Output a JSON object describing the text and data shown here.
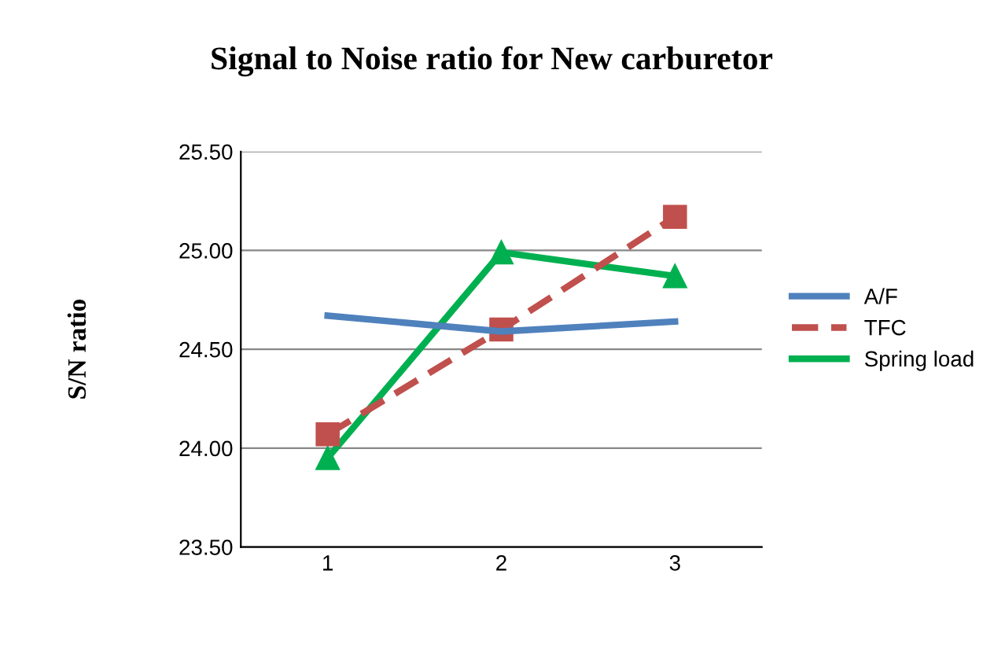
{
  "chart_data": {
    "type": "line",
    "title": "Signal to Noise ratio for New carburetor",
    "ylabel": "S/N ratio",
    "categories": [
      "1",
      "2",
      "3"
    ],
    "series": [
      {
        "name": "A/F",
        "color": "#4f81bd",
        "values": [
          24.67,
          24.59,
          24.64
        ],
        "marker": "none",
        "line_style": "solid"
      },
      {
        "name": "TFC",
        "color": "#c0504d",
        "values": [
          24.07,
          24.6,
          25.17
        ],
        "marker": "square",
        "line_style": "dashed"
      },
      {
        "name": "Spring load",
        "color": "#00b050",
        "values": [
          23.95,
          24.99,
          24.87
        ],
        "marker": "triangle",
        "line_style": "solid"
      }
    ],
    "ylim": [
      23.5,
      25.5
    ],
    "yticks": [
      {
        "value": 23.5,
        "label": "23.50"
      },
      {
        "value": 24.0,
        "label": "24.00"
      },
      {
        "value": 24.5,
        "label": "24.50"
      },
      {
        "value": 25.0,
        "label": "25.00"
      },
      {
        "value": 25.5,
        "label": "25.50"
      }
    ],
    "grid": "y",
    "legend": "right"
  }
}
